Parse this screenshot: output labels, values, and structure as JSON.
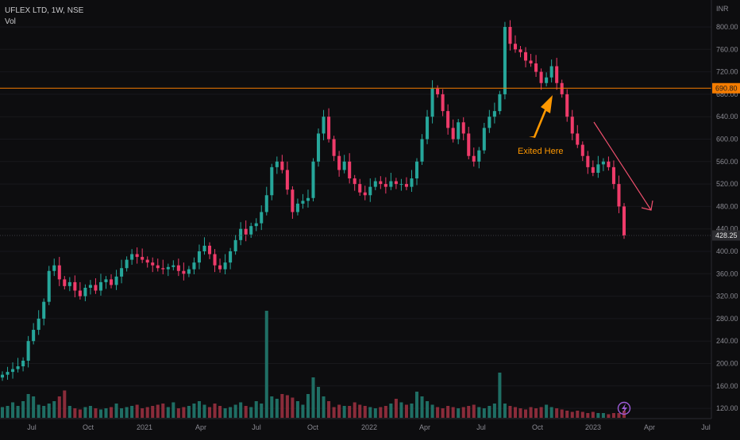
{
  "header": {
    "symbol_line": "UFLEX LTD, 1W, NSE",
    "volume_label": "Vol"
  },
  "chart_data": {
    "type": "candlestick",
    "currency": "INR",
    "y_ticks": [
      120,
      160,
      200,
      240,
      280,
      320,
      360,
      400,
      440,
      480,
      520,
      560,
      600,
      640,
      680,
      720,
      760,
      800
    ],
    "x_ticks": [
      "Jul",
      "Oct",
      "2021",
      "Apr",
      "Jul",
      "Oct",
      "2022",
      "Apr",
      "Jul",
      "Oct",
      "2023",
      "Apr",
      "Jul"
    ],
    "ylim": [
      110,
      820
    ],
    "horizontal_line": {
      "value": 690.8,
      "label": "690.80",
      "color": "#f57c00"
    },
    "last_price": {
      "value": 428.25,
      "label": "428.25"
    },
    "annotations": {
      "exit_text": "Exited Here"
    },
    "colors": {
      "up": "#26a69a",
      "down": "#ef3b6a",
      "vol_up": "#1f6e64",
      "vol_down": "#8a2c3a",
      "accent": "#ff9800",
      "trend_arrow": "#f0506e"
    },
    "closes": [
      180,
      185,
      190,
      195,
      205,
      240,
      260,
      280,
      310,
      365,
      375,
      350,
      338,
      345,
      330,
      320,
      335,
      340,
      330,
      345,
      350,
      340,
      355,
      370,
      385,
      395,
      390,
      385,
      380,
      375,
      370,
      368,
      372,
      375,
      365,
      360,
      368,
      380,
      400,
      410,
      395,
      375,
      368,
      380,
      400,
      420,
      440,
      430,
      445,
      450,
      470,
      500,
      550,
      560,
      545,
      510,
      470,
      485,
      490,
      495,
      560,
      610,
      640,
      600,
      570,
      545,
      560,
      530,
      520,
      505,
      500,
      515,
      525,
      520,
      515,
      525,
      520,
      520,
      515,
      530,
      560,
      600,
      640,
      690,
      680,
      650,
      620,
      600,
      630,
      610,
      570,
      560,
      580,
      620,
      640,
      650,
      680,
      800,
      770,
      760,
      755,
      740,
      735,
      720,
      700,
      710,
      730,
      700,
      680,
      640,
      610,
      590,
      570,
      550,
      540,
      555,
      560,
      550,
      520,
      480,
      428.25
    ],
    "volumes": [
      9,
      10,
      13,
      10,
      14,
      20,
      18,
      11,
      10,
      12,
      14,
      18,
      23,
      10,
      8,
      7,
      9,
      10,
      8,
      7,
      8,
      9,
      12,
      8,
      9,
      10,
      11,
      8,
      9,
      10,
      11,
      12,
      9,
      13,
      8,
      9,
      10,
      12,
      14,
      11,
      9,
      12,
      10,
      8,
      9,
      11,
      13,
      10,
      9,
      14,
      12,
      90,
      18,
      16,
      20,
      19,
      17,
      14,
      11,
      20,
      34,
      26,
      18,
      14,
      9,
      11,
      10,
      10,
      13,
      11,
      10,
      9,
      8,
      9,
      10,
      12,
      16,
      13,
      11,
      12,
      22,
      18,
      14,
      11,
      9,
      8,
      10,
      9,
      8,
      9,
      10,
      11,
      9,
      8,
      10,
      12,
      38,
      12,
      10,
      9,
      8,
      7,
      9,
      8,
      9,
      11,
      9,
      8,
      7,
      6,
      5,
      6,
      5,
      4,
      5,
      4,
      4,
      3,
      4,
      4,
      6
    ]
  }
}
